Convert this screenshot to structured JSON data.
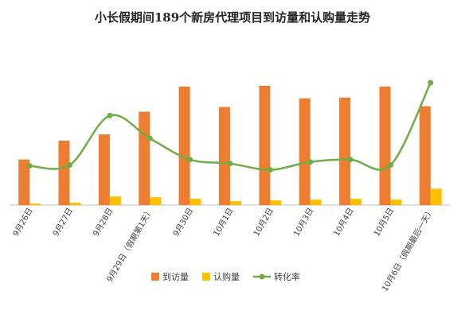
{
  "chart_data": {
    "type": "bar",
    "title": "小长假期间189个新房代理项目到访量和认购量走势",
    "categories": [
      "9月26日",
      "9月27日",
      "9月28日",
      "9月29日（假期第1天）",
      "9月30日",
      "10月1日",
      "10月2日",
      "10月3日",
      "10月4日",
      "10月5日",
      "10月6日（假期最后一天）"
    ],
    "series": [
      {
        "name": "到访量",
        "kind": "bar",
        "color": "#ED7D31",
        "values": [
          58,
          82,
          90,
          119,
          151,
          125,
          152,
          136,
          137,
          151,
          126
        ]
      },
      {
        "name": "认购量",
        "kind": "bar",
        "color": "#FFC000",
        "values": [
          2,
          3,
          11,
          10,
          8,
          5,
          6,
          7,
          8,
          7,
          21
        ]
      },
      {
        "name": "转化率",
        "kind": "line",
        "color": "#70AD47",
        "values": [
          50,
          51,
          114,
          85,
          58,
          53,
          45,
          55,
          58,
          51,
          156
        ]
      }
    ],
    "ylim": [
      0,
      160
    ],
    "grid": false,
    "legend": "bottom",
    "xlabel": "",
    "ylabel": ""
  }
}
